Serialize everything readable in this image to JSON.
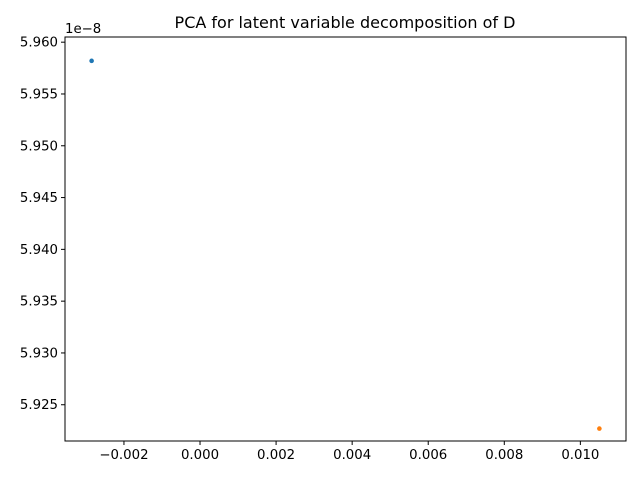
{
  "chart_data": {
    "type": "scatter",
    "title": "PCA for latent variable decomposition of D",
    "xlabel": "",
    "ylabel": "",
    "y_offset_label": "1e−8",
    "xlim": [
      -0.00355,
      0.0112
    ],
    "ylim": [
      5.9215,
      5.9605
    ],
    "xticks": [
      -0.002,
      0.0,
      0.002,
      0.004,
      0.006,
      0.008,
      0.01
    ],
    "xtick_labels": [
      "−0.002",
      "0.000",
      "0.002",
      "0.004",
      "0.006",
      "0.008",
      "0.010"
    ],
    "yticks": [
      5.925,
      5.93,
      5.935,
      5.94,
      5.945,
      5.95,
      5.955,
      5.96
    ],
    "ytick_labels": [
      "5.925",
      "5.930",
      "5.935",
      "5.940",
      "5.945",
      "5.950",
      "5.955",
      "5.960"
    ],
    "grid": false,
    "series": [
      {
        "color": "#1f77b4",
        "points": [
          {
            "x": -0.00285,
            "y": 5.9582
          }
        ]
      },
      {
        "color": "#ff7f0e",
        "points": [
          {
            "x": 0.0105,
            "y": 5.9227
          }
        ]
      }
    ]
  }
}
